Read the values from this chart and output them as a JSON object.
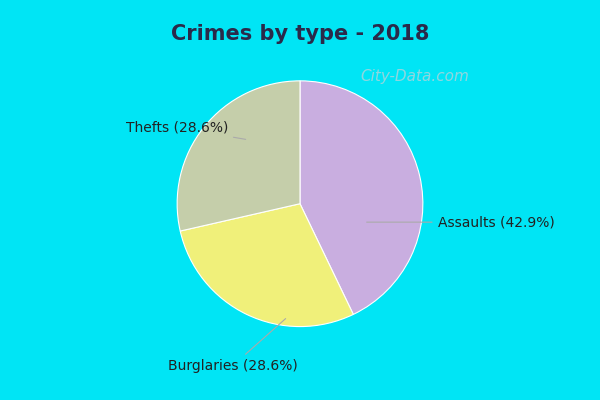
{
  "title": "Crimes by type - 2018",
  "title_color": "#2a2a4a",
  "title_fontsize": 15,
  "slices": [
    "Assaults",
    "Thefts",
    "Burglaries"
  ],
  "values": [
    42.9,
    28.6,
    28.6
  ],
  "colors": [
    "#c9aee0",
    "#f0f07a",
    "#c5ceaa"
  ],
  "labels": [
    "Assaults (42.9%)",
    "Thefts (28.6%)",
    "Burglaries (28.6%)"
  ],
  "background_top": "#00e5f5",
  "background_main": "#e0f5ee",
  "label_fontsize": 10,
  "watermark": "City-Data.com",
  "watermark_color": "#a8d4dc",
  "watermark_fontsize": 11
}
